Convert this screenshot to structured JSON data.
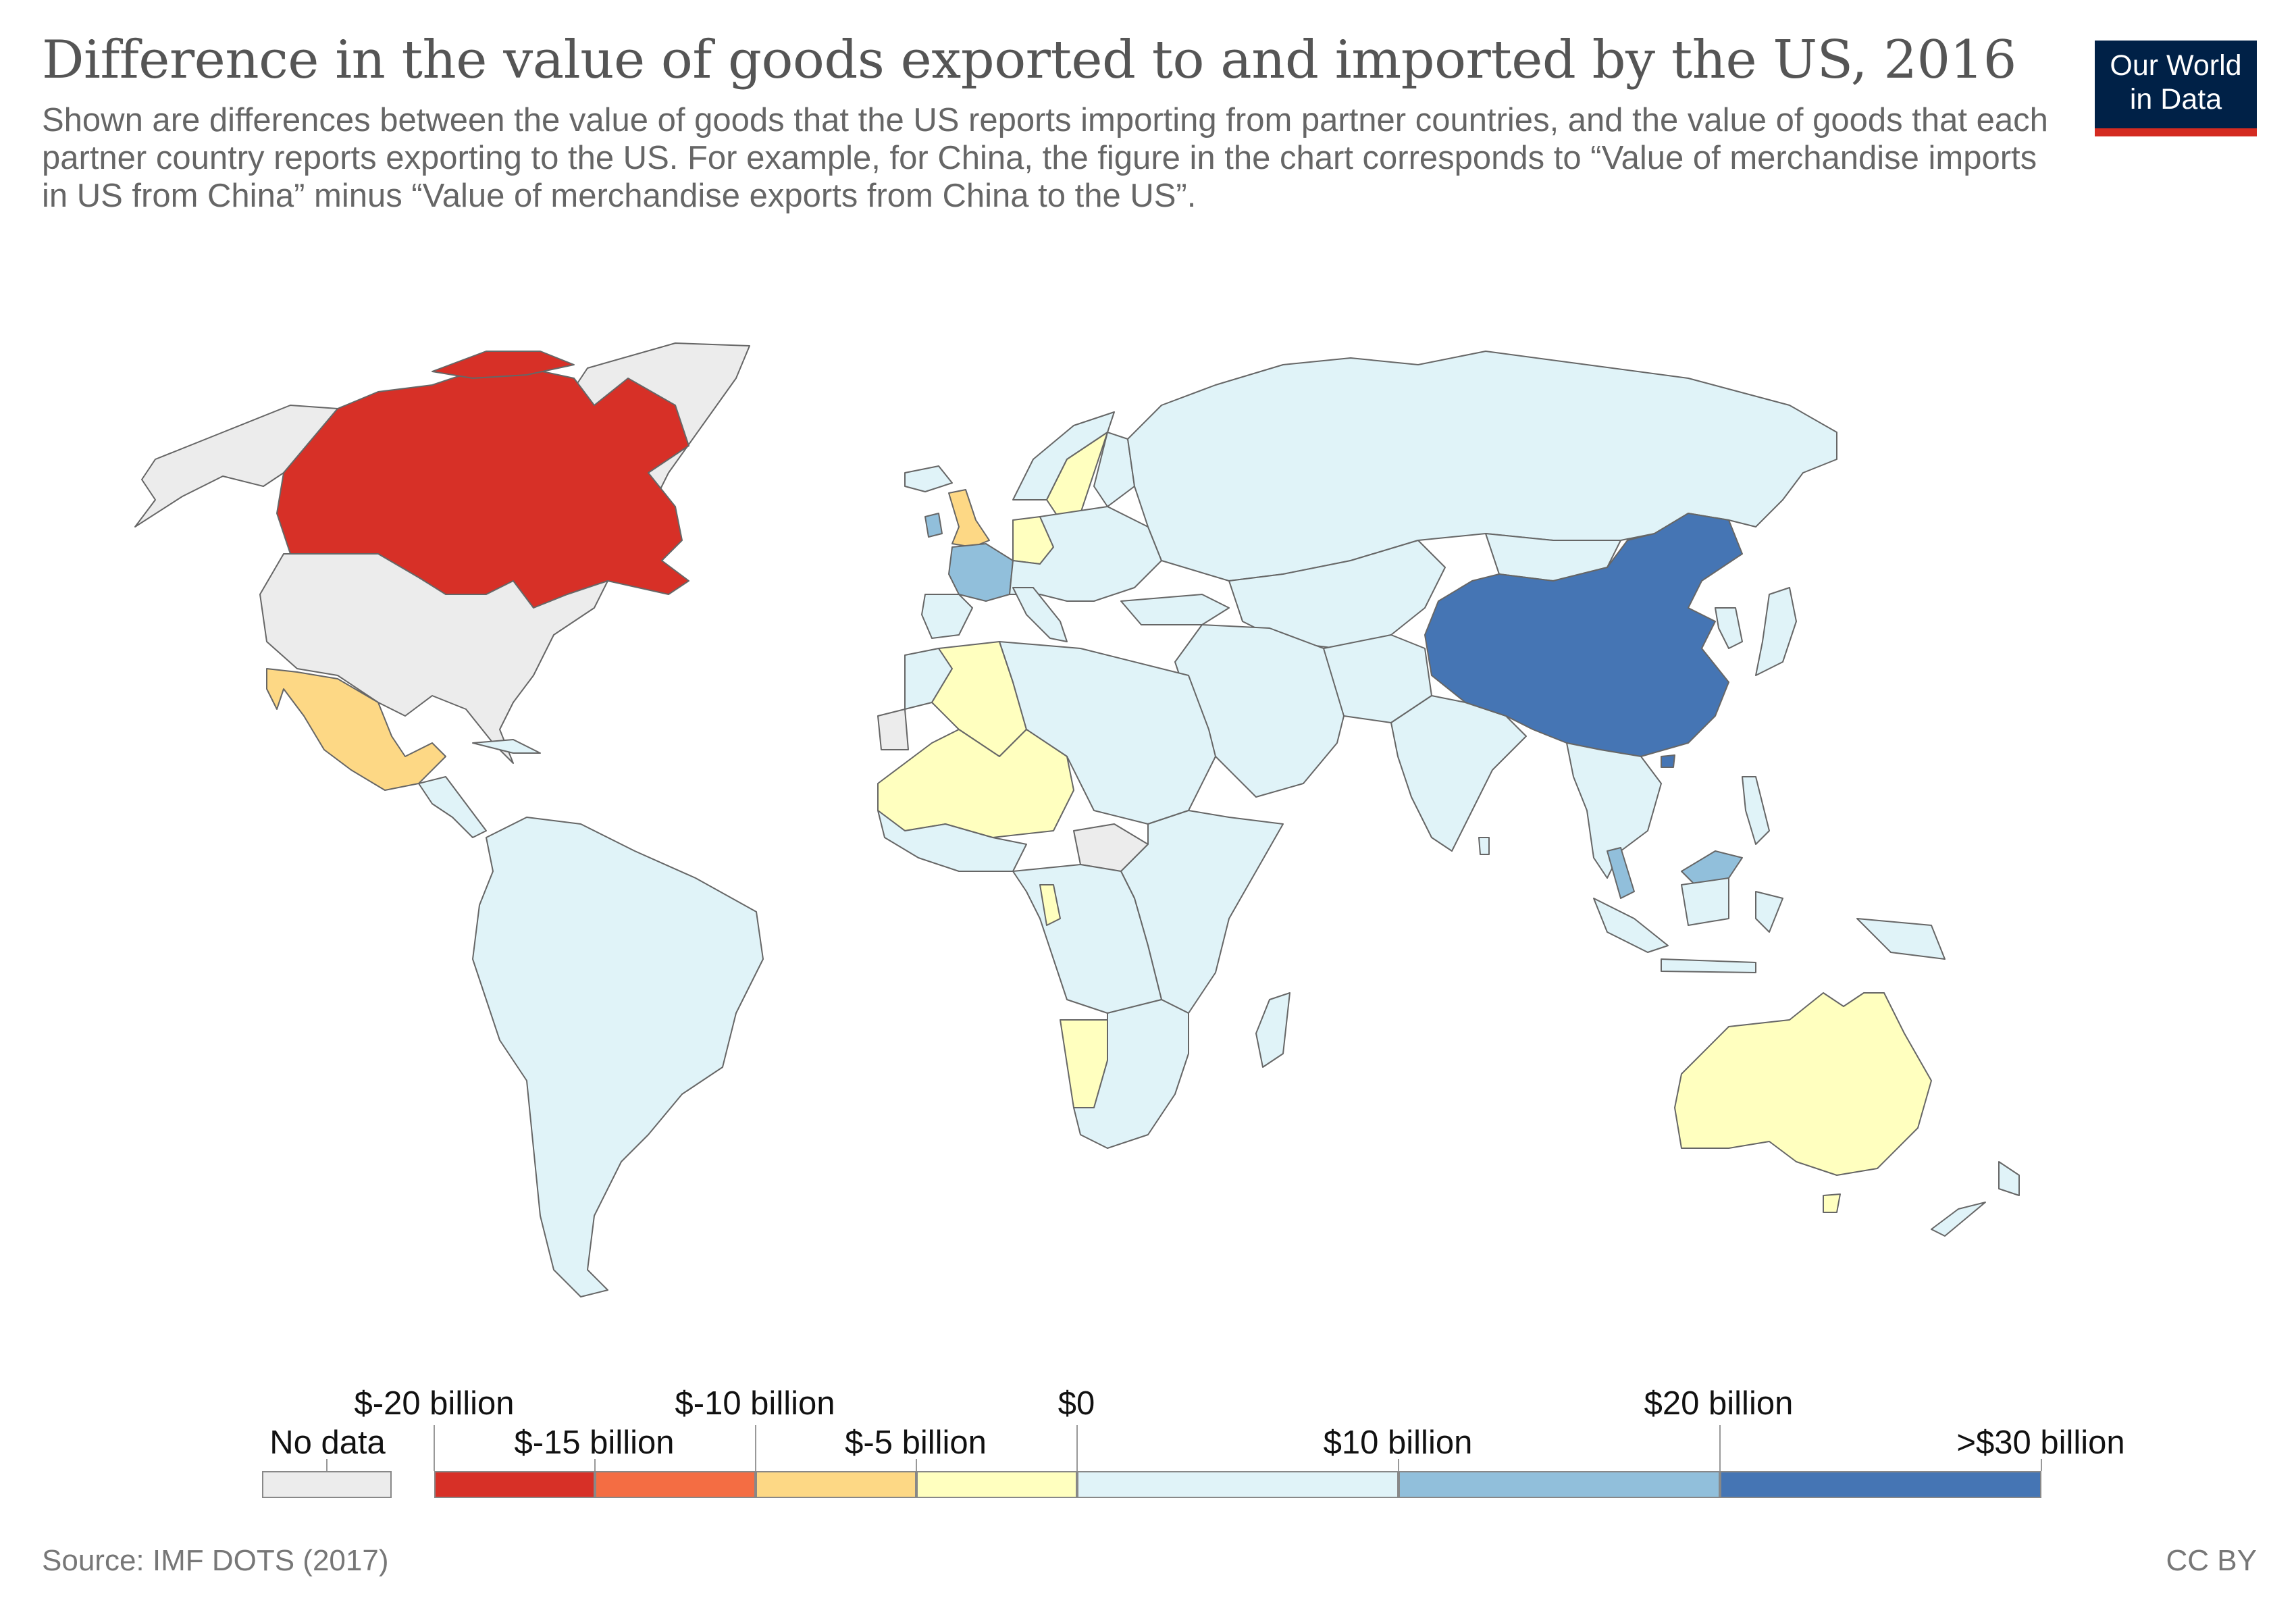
{
  "title": "Difference in the value of goods exported to and imported by the US, 2016",
  "subtitle": "Shown are differences between the value of goods that the US reports importing from partner countries, and the value of goods that each partner country reports exporting to the US. For example, for China, the figure in the chart corresponds to “Value of merchandise imports in US from China” minus “Value of merchandise exports from China to the US”.",
  "logo": {
    "line1": "Our World",
    "line2": "in Data"
  },
  "source": "Source: IMF DOTS (2017)",
  "license": "CC BY",
  "colors": {
    "no_data": "#ececec",
    "bin_neg20_neg15": "#d73027",
    "bin_neg15_neg10": "#f46d43",
    "bin_neg10_neg5": "#fdd885",
    "bin_neg5_0": "#ffffbf",
    "bin_0_10": "#e0f3f8",
    "bin_10_20": "#91bfdb",
    "bin_20_30": "#4575b4",
    "border": "#666666"
  },
  "legend": {
    "no_data_label": "No data",
    "top_labels": [
      "$-20 billion",
      "$-10 billion",
      "$0",
      "$20 billion"
    ],
    "bottom_labels": [
      "$-15 billion",
      "$-5 billion",
      "$10 billion",
      ">$30 billion"
    ],
    "bins": [
      "bin_neg20_neg15",
      "bin_neg15_neg10",
      "bin_neg10_neg5",
      "bin_neg5_0",
      "bin_0_10",
      "bin_10_20",
      "bin_20_30"
    ]
  },
  "map_data": {
    "projection": "world",
    "value_unit": "billion US$",
    "countries": [
      {
        "name": "Canada",
        "bin": "bin_neg20_neg15"
      },
      {
        "name": "United States",
        "bin": "no_data"
      },
      {
        "name": "Greenland",
        "bin": "no_data"
      },
      {
        "name": "Mexico",
        "bin": "bin_neg10_neg5"
      },
      {
        "name": "United Kingdom",
        "bin": "bin_neg10_neg5"
      },
      {
        "name": "Ireland",
        "bin": "bin_10_20"
      },
      {
        "name": "France",
        "bin": "bin_10_20"
      },
      {
        "name": "Germany",
        "bin": "bin_neg5_0"
      },
      {
        "name": "Sweden",
        "bin": "bin_neg5_0"
      },
      {
        "name": "Algeria",
        "bin": "bin_neg5_0"
      },
      {
        "name": "Niger",
        "bin": "bin_neg5_0"
      },
      {
        "name": "Mali",
        "bin": "bin_neg5_0"
      },
      {
        "name": "Chad",
        "bin": "bin_neg5_0"
      },
      {
        "name": "Namibia",
        "bin": "bin_neg5_0"
      },
      {
        "name": "Australia",
        "bin": "bin_neg5_0"
      },
      {
        "name": "China",
        "bin": "bin_20_30"
      },
      {
        "name": "Malaysia",
        "bin": "bin_10_20"
      },
      {
        "name": "Central African Republic",
        "bin": "no_data"
      },
      {
        "name": "Western Sahara",
        "bin": "no_data"
      },
      {
        "name": "Russia",
        "bin": "bin_0_10"
      },
      {
        "name": "Brazil",
        "bin": "bin_0_10"
      },
      {
        "name": "India",
        "bin": "bin_0_10"
      }
    ]
  }
}
